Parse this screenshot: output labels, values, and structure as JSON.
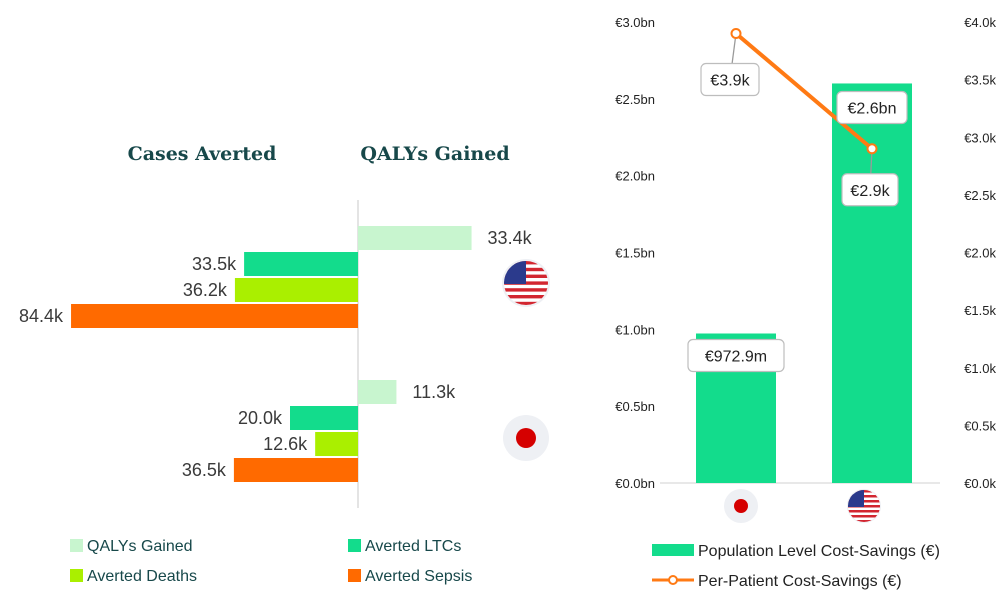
{
  "chart_data": [
    {
      "type": "bar",
      "orientation": "horizontal",
      "headers": {
        "left": "Cases Averted",
        "right": "QALYs Gained"
      },
      "groups": [
        {
          "icon": "usa-flag-icon",
          "qalys": 33.4,
          "ltcs": 33.5,
          "deaths": 36.2,
          "sepsis": 84.4,
          "labels": {
            "qalys": "33.4k",
            "ltcs": "33.5k",
            "deaths": "36.2k",
            "sepsis": "84.4k"
          }
        },
        {
          "icon": "japan-flag-icon",
          "qalys": 11.3,
          "ltcs": 20.0,
          "deaths": 12.6,
          "sepsis": 36.5,
          "labels": {
            "qalys": "11.3k",
            "ltcs": "20.0k",
            "deaths": "12.6k",
            "sepsis": "36.5k"
          }
        }
      ],
      "legend": [
        {
          "key": "qalys",
          "label": "QALYs Gained",
          "color": "#c8f5cf"
        },
        {
          "key": "ltcs",
          "label": "Averted LTCs",
          "color": "#13dc8c"
        },
        {
          "key": "deaths",
          "label": "Averted Deaths",
          "color": "#aaef00"
        },
        {
          "key": "sepsis",
          "label": "Averted Sepsis",
          "color": "#ff6a00"
        }
      ],
      "units": "thousands"
    },
    {
      "type": "bar+line",
      "categories": [
        "Japan",
        "United States"
      ],
      "category_icons": [
        "japan-flag-icon",
        "usa-flag-icon"
      ],
      "series": [
        {
          "name": "Population Level Cost-Savings (€)",
          "type": "bar",
          "axis": "left",
          "values": [
            0.9729,
            2.6
          ],
          "labels": [
            "€972.9m",
            "€2.6bn"
          ],
          "color": "#13dc8c"
        },
        {
          "name": "Per-Patient Cost-Savings (€)",
          "type": "line",
          "axis": "right",
          "values": [
            3.9,
            2.9
          ],
          "labels": [
            "€3.9k",
            "€2.9k"
          ],
          "color": "#ff7a14"
        }
      ],
      "y_left": {
        "ylim": [
          0,
          3.0
        ],
        "ticks": [
          "€0.0bn",
          "€0.5bn",
          "€1.0bn",
          "€1.5bn",
          "€2.0bn",
          "€2.5bn",
          "€3.0bn"
        ]
      },
      "y_right": {
        "ylim": [
          0,
          4.0
        ],
        "ticks": [
          "€0.0k",
          "€0.5k",
          "€1.0k",
          "€1.5k",
          "€2.0k",
          "€2.5k",
          "€3.0k",
          "€3.5k",
          "€4.0k"
        ]
      }
    }
  ]
}
